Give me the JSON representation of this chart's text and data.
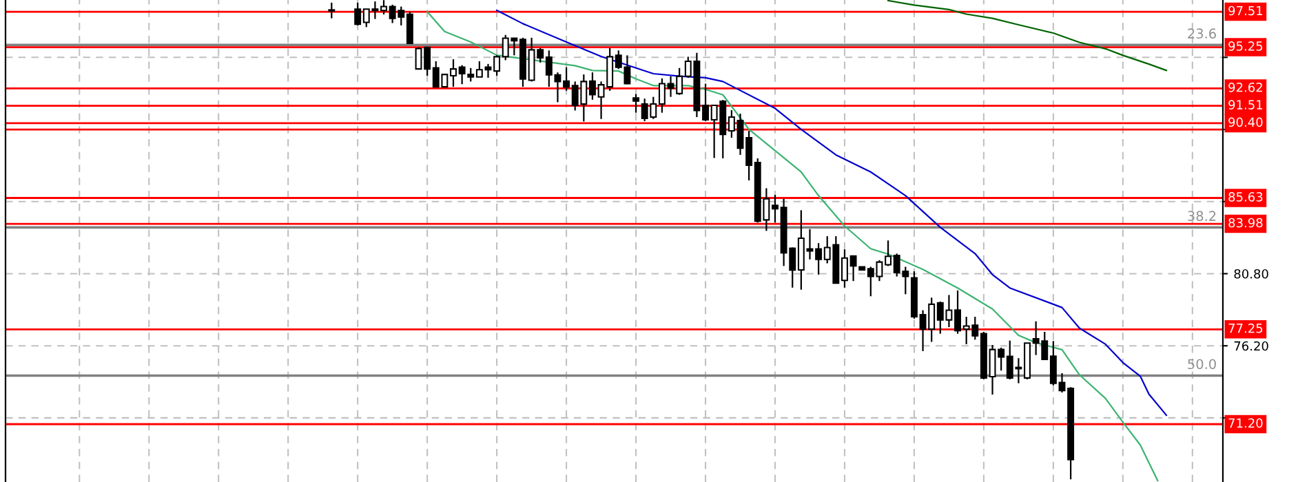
{
  "chart_data": {
    "type": "candlestick",
    "categories": [
      null,
      null,
      null,
      null,
      null,
      null,
      null,
      null,
      null,
      null,
      null,
      null,
      null,
      null,
      null,
      null,
      null,
      null,
      null,
      null,
      null,
      null,
      null,
      null,
      null,
      null,
      null,
      null,
      null,
      null,
      null,
      null,
      null,
      null,
      null,
      null,
      null,
      null,
      null,
      null,
      null,
      null,
      null,
      null,
      null,
      null,
      null,
      null,
      null,
      null,
      null,
      null,
      null,
      null,
      null,
      null,
      null,
      null,
      null,
      null,
      null,
      null,
      null,
      null,
      null,
      null,
      null,
      null,
      null,
      null,
      null,
      null,
      null,
      null,
      null,
      null,
      null,
      null,
      null,
      null,
      null,
      null,
      null,
      null,
      null,
      null,
      null,
      null,
      null,
      null,
      null,
      null,
      null,
      null,
      null,
      null,
      null,
      null,
      null,
      null,
      null,
      null,
      null,
      null,
      null,
      null,
      null,
      null,
      null,
      null,
      null,
      null,
      null,
      null,
      null,
      null,
      null,
      null,
      null,
      null,
      null,
      null,
      null,
      null,
      null,
      null,
      null,
      null,
      null,
      null,
      null,
      null,
      null,
      null,
      null,
      null,
      null,
      null,
      null,
      null
    ],
    "ohlc": [
      null,
      null,
      null,
      null,
      null,
      null,
      null,
      null,
      null,
      null,
      null,
      null,
      null,
      null,
      null,
      null,
      null,
      null,
      null,
      null,
      null,
      null,
      null,
      null,
      null,
      null,
      null,
      null,
      null,
      null,
      null,
      null,
      null,
      null,
      null,
      null,
      null,
      [
        97.63,
        98.09,
        97.09,
        97.56
      ],
      null,
      null,
      [
        97.68,
        98.09,
        96.64,
        96.71
      ],
      [
        96.83,
        97.68,
        96.53,
        97.68
      ],
      [
        97.68,
        98.17,
        97.05,
        97.59
      ],
      [
        97.59,
        98.25,
        97.34,
        97.84
      ],
      [
        97.84,
        97.96,
        96.79,
        97.09
      ],
      [
        97.59,
        97.84,
        96.64,
        97.17
      ],
      [
        97.35,
        97.51,
        95.49,
        95.49
      ],
      [
        93.86,
        95.24,
        93.86,
        95.16
      ],
      [
        95.24,
        95.24,
        93.43,
        93.86
      ],
      [
        93.93,
        94.35,
        92.72,
        92.72
      ],
      [
        92.72,
        93.51,
        92.72,
        93.51
      ],
      [
        93.43,
        94.48,
        92.72,
        93.86
      ],
      [
        93.97,
        94.1,
        92.89,
        93.56
      ],
      [
        93.51,
        93.92,
        93.06,
        93.35
      ],
      [
        93.35,
        94.35,
        93.35,
        93.81
      ],
      [
        93.97,
        94.18,
        93.3,
        93.81
      ],
      [
        93.73,
        94.73,
        93.43,
        94.64
      ],
      [
        94.64,
        96.03,
        94.42,
        95.82
      ],
      [
        95.82,
        95.85,
        94.73,
        95.66
      ],
      [
        95.74,
        95.85,
        92.72,
        93.22
      ],
      [
        93.14,
        95.85,
        93.06,
        95.08
      ],
      [
        95.08,
        95.19,
        94.27,
        94.57
      ],
      [
        94.61,
        95.04,
        92.72,
        93.48
      ],
      [
        93.48,
        93.64,
        91.74,
        93.06
      ],
      [
        93.09,
        93.97,
        92.47,
        92.72
      ],
      [
        92.8,
        93.06,
        91.21,
        91.54
      ],
      [
        91.62,
        93.51,
        90.51,
        93.06
      ],
      [
        93.09,
        93.64,
        91.9,
        92.22
      ],
      [
        92.08,
        93.06,
        90.67,
        92.85
      ],
      [
        92.72,
        95.19,
        92.47,
        94.64
      ],
      [
        94.73,
        95.04,
        93.86,
        93.97
      ],
      [
        93.97,
        94.73,
        92.89,
        92.92
      ],
      [
        92.01,
        92.26,
        91.07,
        91.82
      ],
      [
        91.63,
        91.97,
        90.53,
        90.71
      ],
      [
        90.79,
        92.08,
        90.67,
        91.63
      ],
      [
        91.63,
        93.26,
        91.07,
        92.92
      ],
      [
        92.92,
        93.39,
        92.08,
        92.63
      ],
      [
        92.29,
        93.92,
        92.21,
        93.39
      ],
      [
        93.39,
        94.64,
        93.3,
        94.35
      ],
      [
        94.35,
        94.89,
        90.79,
        91.21
      ],
      [
        91.54,
        92.92,
        90.53,
        90.62
      ],
      [
        90.62,
        91.54,
        88.18,
        91.54
      ],
      [
        91.8,
        91.88,
        88.16,
        89.69
      ],
      [
        89.91,
        91.23,
        89.47,
        90.79
      ],
      [
        90.57,
        91.01,
        88.38,
        88.81
      ],
      [
        89.47,
        89.91,
        86.75,
        87.72
      ],
      [
        87.89,
        88.16,
        84.06,
        84.15
      ],
      [
        84.23,
        86.25,
        83.53,
        85.58
      ],
      [
        85.16,
        85.83,
        84.06,
        84.94
      ],
      [
        85.02,
        85.58,
        81.29,
        82.13
      ],
      [
        82.42,
        82.47,
        79.91,
        81.03
      ],
      [
        81.04,
        84.85,
        79.78,
        83.06
      ],
      [
        82.38,
        83.64,
        81.71,
        82.25
      ],
      [
        82.38,
        82.75,
        80.74,
        81.71
      ],
      [
        81.71,
        83.19,
        81.46,
        82.47
      ],
      [
        82.64,
        83.19,
        80.2,
        80.2
      ],
      [
        80.37,
        82.35,
        79.91,
        81.8
      ],
      [
        81.93,
        81.93,
        80.33,
        81.29
      ],
      [
        81.24,
        81.24,
        81.04,
        81.04
      ],
      [
        81.12,
        81.24,
        79.36,
        80.62
      ],
      [
        80.62,
        81.66,
        80.33,
        81.54
      ],
      [
        81.37,
        82.92,
        81.29,
        81.91
      ],
      [
        81.96,
        82.08,
        80.62,
        80.87
      ],
      [
        80.95,
        81.24,
        79.49,
        80.62
      ],
      [
        80.53,
        80.95,
        77.93,
        78.05
      ],
      [
        78.18,
        78.47,
        75.86,
        77.26
      ],
      [
        77.26,
        79.27,
        76.45,
        78.85
      ],
      [
        78.94,
        79.02,
        76.97,
        77.85
      ],
      [
        77.85,
        79.44,
        77.39,
        78.47
      ],
      [
        78.48,
        79.73,
        76.97,
        77.17
      ],
      [
        77.26,
        78.05,
        76.3,
        77.46
      ],
      [
        77.51,
        78.05,
        76.59,
        76.84
      ],
      [
        76.97,
        77.09,
        74.06,
        74.15
      ],
      [
        74.23,
        76.25,
        73.09,
        75.96
      ],
      [
        75.96,
        76.08,
        74.62,
        75.49
      ],
      [
        75.53,
        76.53,
        74.06,
        74.15
      ],
      [
        74.82,
        75.41,
        73.81,
        74.74
      ],
      [
        74.15,
        76.37,
        74.06,
        76.37
      ],
      [
        76.64,
        77.76,
        75.61,
        76.37
      ],
      [
        76.5,
        77.09,
        75.29,
        75.33
      ],
      [
        75.54,
        76.5,
        73.68,
        73.81
      ],
      [
        73.86,
        74.45,
        73.22,
        73.34
      ],
      [
        73.48,
        73.56,
        67.68,
        68.94
      ],
      null,
      null,
      null,
      null,
      null,
      null,
      null,
      null,
      null,
      null,
      null,
      null,
      null,
      null,
      null,
      null,
      null
    ],
    "series": [
      {
        "type": "line",
        "color": "#3cb371",
        "values": [
          null,
          null,
          null,
          null,
          null,
          null,
          null,
          null,
          null,
          null,
          null,
          null,
          null,
          null,
          null,
          null,
          null,
          null,
          null,
          null,
          null,
          null,
          null,
          null,
          null,
          null,
          null,
          null,
          null,
          null,
          null,
          null,
          null,
          null,
          null,
          null,
          null,
          null,
          null,
          null,
          null,
          null,
          null,
          null,
          null,
          null,
          null,
          null,
          97.51,
          null,
          96.25,
          null,
          null,
          95.58,
          null,
          null,
          94.74,
          null,
          null,
          null,
          null,
          null,
          null,
          null,
          null,
          94.07,
          null,
          93.76,
          null,
          null,
          93.73,
          null,
          93.23,
          null,
          92.8,
          null,
          null,
          null,
          92.8,
          null,
          92.56,
          null,
          92.21,
          null,
          null,
          90.01,
          null,
          null,
          null,
          null,
          null,
          87.29,
          null,
          85.78,
          null,
          null,
          83.84,
          null,
          null,
          82.39,
          null,
          82.05,
          null,
          null,
          null,
          81.07,
          null,
          null,
          null,
          79.89,
          null,
          null,
          null,
          78.55,
          null,
          null,
          76.87,
          null,
          76.4,
          null,
          null,
          75.95,
          null,
          74.35,
          null,
          null,
          72.84,
          null,
          71.33,
          null,
          69.87,
          null,
          67.6,
          null,
          null,
          null,
          null,
          null,
          null,
          null
        ]
      },
      {
        "type": "line",
        "color": "#0000cd",
        "values": [
          null,
          null,
          null,
          null,
          null,
          null,
          null,
          null,
          null,
          null,
          null,
          null,
          null,
          null,
          null,
          null,
          null,
          null,
          null,
          null,
          null,
          null,
          null,
          null,
          null,
          null,
          null,
          null,
          null,
          null,
          null,
          null,
          null,
          null,
          null,
          null,
          null,
          null,
          null,
          null,
          null,
          null,
          null,
          null,
          null,
          null,
          null,
          null,
          null,
          null,
          null,
          null,
          null,
          null,
          null,
          null,
          97.6,
          null,
          null,
          96.75,
          null,
          null,
          null,
          null,
          95.58,
          null,
          null,
          null,
          94.66,
          null,
          null,
          null,
          null,
          null,
          93.56,
          null,
          null,
          93.4,
          null,
          null,
          93.3,
          null,
          93.06,
          null,
          null,
          null,
          null,
          null,
          91.35,
          null,
          null,
          90.01,
          null,
          null,
          null,
          88.38,
          null,
          null,
          null,
          87.29,
          null,
          null,
          null,
          85.78,
          null,
          null,
          null,
          83.76,
          null,
          null,
          null,
          82.08,
          null,
          80.74,
          null,
          79.89,
          null,
          null,
          null,
          null,
          null,
          78.64,
          null,
          77.33,
          null,
          null,
          76.3,
          null,
          75.13,
          null,
          74.26,
          73.11,
          null,
          71.77,
          null,
          null,
          null,
          null,
          null,
          null
        ]
      },
      {
        "type": "line",
        "color": "#006400",
        "values": [
          null,
          null,
          null,
          null,
          null,
          null,
          null,
          null,
          null,
          null,
          null,
          null,
          null,
          null,
          null,
          null,
          null,
          null,
          null,
          null,
          null,
          null,
          null,
          null,
          null,
          null,
          null,
          null,
          null,
          null,
          null,
          null,
          null,
          null,
          null,
          null,
          null,
          null,
          null,
          null,
          null,
          null,
          null,
          null,
          null,
          null,
          null,
          null,
          null,
          null,
          null,
          null,
          null,
          null,
          null,
          null,
          null,
          null,
          null,
          null,
          null,
          null,
          null,
          null,
          null,
          null,
          null,
          null,
          null,
          null,
          null,
          null,
          null,
          null,
          null,
          null,
          null,
          null,
          null,
          null,
          null,
          null,
          null,
          null,
          null,
          null,
          null,
          null,
          null,
          null,
          null,
          null,
          null,
          null,
          null,
          null,
          null,
          null,
          null,
          null,
          null,
          98.22,
          null,
          null,
          97.94,
          null,
          null,
          null,
          97.65,
          null,
          97.36,
          null,
          null,
          97.09,
          null,
          null,
          96.68,
          null,
          null,
          null,
          96.15,
          null,
          null,
          95.56,
          null,
          null,
          95.15,
          null,
          94.73,
          null,
          null,
          94.17,
          null,
          93.77,
          null,
          null,
          null,
          null,
          null,
          null
        ]
      }
    ],
    "ylim": [
      67.51,
      98.26
    ],
    "yticks": [
      {
        "value": 71.6,
        "label": null
      },
      {
        "value": 76.2,
        "label": "76.20"
      },
      {
        "value": 80.8,
        "label": "80.80"
      },
      {
        "value": 85.4,
        "label": null
      },
      {
        "value": 90.0,
        "label": null
      },
      {
        "value": 94.6,
        "label": null
      }
    ],
    "ref_lines": [
      {
        "axis": "y",
        "value": 97.51,
        "label": "97.51",
        "color": "#ff0000"
      },
      {
        "axis": "y",
        "value": 95.25,
        "label": "95.25",
        "color": "#ff0000"
      },
      {
        "axis": "y",
        "value": 92.62,
        "label": "92.62",
        "color": "#ff0000"
      },
      {
        "axis": "y",
        "value": 91.51,
        "label": "91.51",
        "color": "#ff0000"
      },
      {
        "axis": "y",
        "value": 90.4,
        "label": "90.40",
        "color": "#ff0000"
      },
      {
        "axis": "y",
        "value": 90.0,
        "label": null,
        "color": "#ff0000"
      },
      {
        "axis": "y",
        "value": 85.63,
        "label": "85.63",
        "color": "#ff0000"
      },
      {
        "axis": "y",
        "value": 83.98,
        "label": "83.98",
        "color": "#ff0000"
      },
      {
        "axis": "y",
        "value": 77.25,
        "label": "77.25",
        "color": "#ff0000"
      },
      {
        "axis": "y",
        "value": 71.2,
        "label": "71.20",
        "color": "#ff0000"
      },
      {
        "axis": "y",
        "value": 95.39,
        "label": null,
        "color": "#808080"
      },
      {
        "axis": "y",
        "value": 83.75,
        "label": null,
        "color": "#808080"
      },
      {
        "axis": "y",
        "value": 74.3,
        "label": null,
        "color": "#808080"
      }
    ],
    "annotations": [
      {
        "text": "23.6",
        "y": 95.39
      },
      {
        "text": "38.2",
        "y": 83.75
      },
      {
        "text": "50.0",
        "y": 74.3
      }
    ],
    "grid": true
  }
}
